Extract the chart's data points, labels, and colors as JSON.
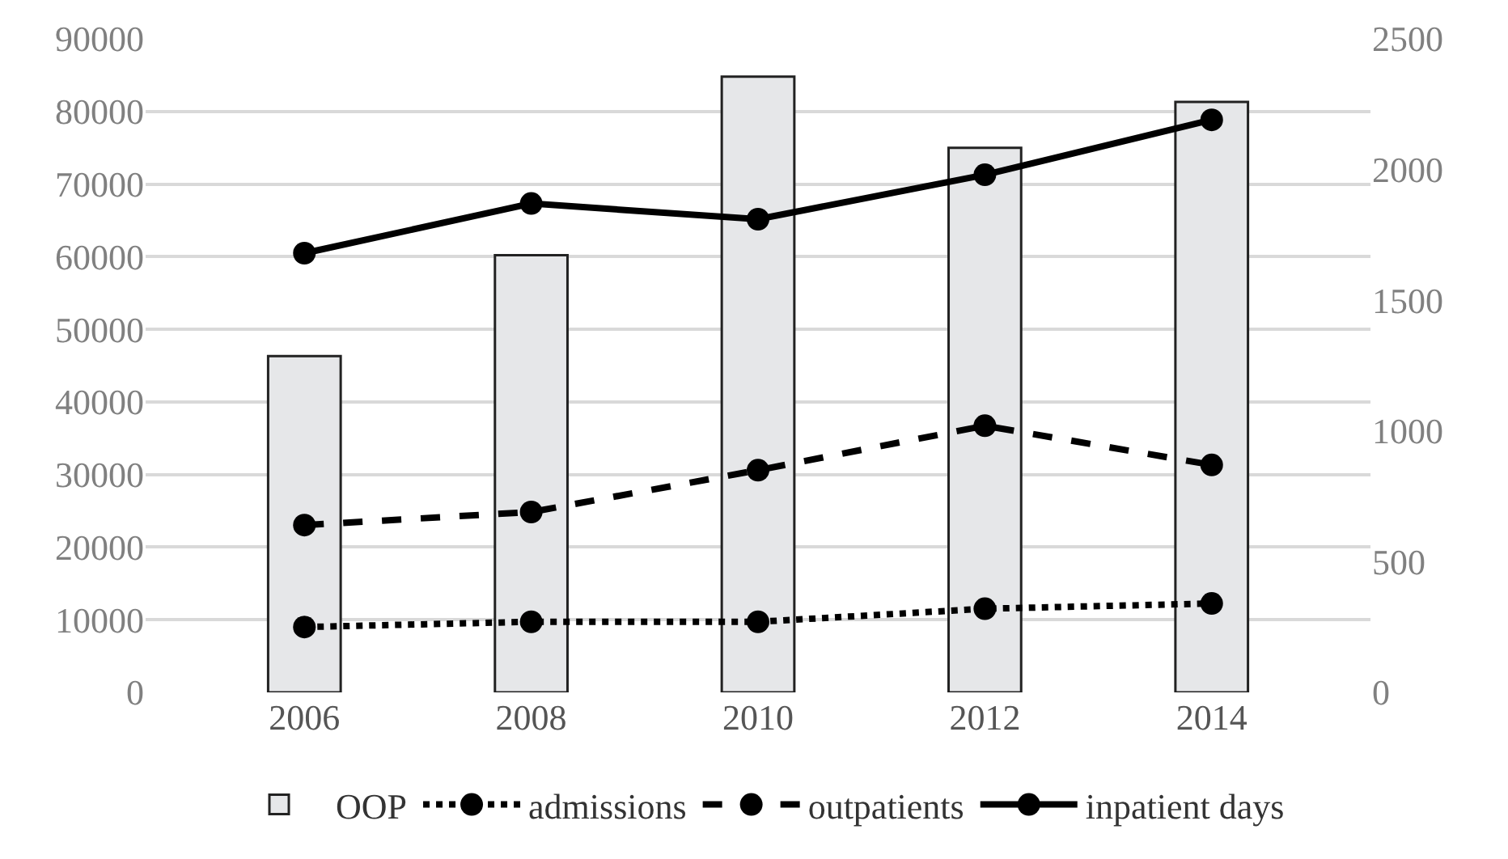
{
  "chart_data": {
    "type": "bar",
    "categories": [
      "2006",
      "2008",
      "2010",
      "2012",
      "2014"
    ],
    "series": [
      {
        "name": "OOP",
        "color": "#e6e7e9",
        "values": [
          46300,
          60200,
          84800,
          75000,
          81300
        ]
      },
      {
        "name": "admissions",
        "type": "line",
        "axis": "y2",
        "color": "#000000",
        "line_style": "dotted",
        "marker": "circle",
        "values": [
          250,
          270,
          270,
          320,
          340
        ]
      },
      {
        "name": "outpatients",
        "type": "line",
        "axis": "y2",
        "color": "#000000",
        "line_style": "dashed",
        "marker": "circle",
        "values": [
          640,
          690,
          850,
          1020,
          870
        ]
      },
      {
        "name": "inpatient days",
        "type": "line",
        "axis": "y2",
        "color": "#000000",
        "line_style": "solid",
        "marker": "circle",
        "values": [
          1680,
          1870,
          1810,
          1980,
          2190
        ]
      }
    ],
    "ylim": [
      0,
      90000
    ],
    "yticks": [
      0,
      10000,
      20000,
      30000,
      40000,
      50000,
      60000,
      70000,
      80000,
      90000
    ],
    "y2lim": [
      0,
      2500
    ],
    "y2ticks": [
      0,
      500,
      1000,
      1500,
      2000,
      2500
    ],
    "grid": "y",
    "legend": "bottom"
  }
}
